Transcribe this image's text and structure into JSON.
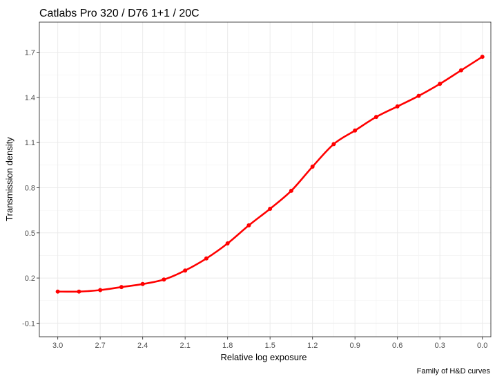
{
  "chart_data": {
    "type": "line",
    "title": "Catlabs Pro 320  / D76 1+1 / 20C",
    "xlabel": "Relative log exposure",
    "ylabel": "Transmission density",
    "caption": "Family of H&D curves",
    "x_reversed": true,
    "xlim": [
      3.13,
      -0.06
    ],
    "ylim": [
      -0.19,
      1.9
    ],
    "x_ticks": [
      3.0,
      2.7,
      2.4,
      2.1,
      1.8,
      1.5,
      1.2,
      0.9,
      0.6,
      0.3,
      0.0
    ],
    "x_tick_labels": [
      "3.0",
      "2.7",
      "2.4",
      "2.1",
      "1.8",
      "1.5",
      "1.2",
      "0.9",
      "0.6",
      "0.3",
      "0.0"
    ],
    "y_ticks": [
      -0.1,
      0.2,
      0.5,
      0.8,
      1.1,
      1.4,
      1.7
    ],
    "y_tick_labels": [
      "-0.1",
      "0.2",
      "0.5",
      "0.8",
      "1.1",
      "1.4",
      "1.7"
    ],
    "grid": true,
    "legend": "none",
    "series": [
      {
        "color": "#ff0000",
        "x": [
          3.0,
          2.85,
          2.7,
          2.55,
          2.4,
          2.25,
          2.1,
          1.95,
          1.8,
          1.65,
          1.5,
          1.35,
          1.2,
          1.05,
          0.9,
          0.75,
          0.6,
          0.45,
          0.3,
          0.15,
          0.0
        ],
        "y": [
          0.11,
          0.11,
          0.12,
          0.14,
          0.16,
          0.19,
          0.25,
          0.33,
          0.43,
          0.55,
          0.66,
          0.78,
          0.94,
          1.09,
          1.18,
          1.27,
          1.34,
          1.41,
          1.49,
          1.58,
          1.67
        ]
      }
    ]
  }
}
